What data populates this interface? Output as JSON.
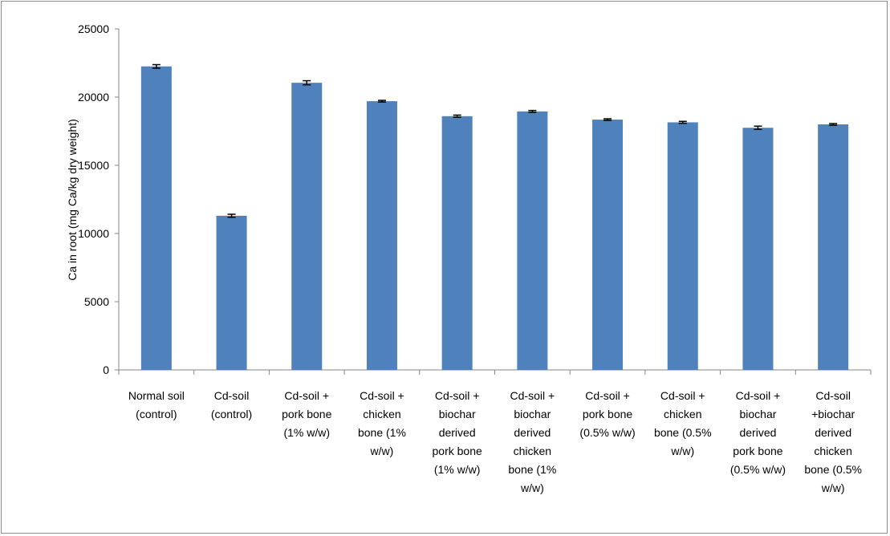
{
  "chart_data": {
    "type": "bar",
    "title": "",
    "xlabel": "",
    "ylabel": "Ca in root (mg Ca/kg dry weight)",
    "ylim": [
      0,
      25000
    ],
    "yticks": [
      0,
      5000,
      10000,
      15000,
      20000,
      25000
    ],
    "grid": false,
    "legend": "none",
    "bar_color": "#4f81bd",
    "categories": [
      [
        "Normal soil",
        "(control)"
      ],
      [
        "Cd-soil",
        "(control)"
      ],
      [
        "Cd-soil +",
        "pork bone",
        "(1% w/w)"
      ],
      [
        "Cd-soil +",
        "chicken",
        "bone (1%",
        "w/w)"
      ],
      [
        "Cd-soil +",
        "biochar",
        "derived",
        "pork bone",
        "(1% w/w)"
      ],
      [
        "Cd-soil +",
        "biochar",
        "derived",
        "chicken",
        "bone (1%",
        "w/w)"
      ],
      [
        "Cd-soil +",
        "pork bone",
        "(0.5% w/w)"
      ],
      [
        "Cd-soil +",
        "chicken",
        "bone (0.5%",
        "w/w)"
      ],
      [
        "Cd-soil +",
        "biochar",
        "derived",
        "pork bone",
        "(0.5% w/w)"
      ],
      [
        "Cd-soil",
        "+biochar",
        "derived",
        "chicken",
        "bone (0.5%",
        "w/w)"
      ]
    ],
    "values": [
      22250,
      11300,
      21050,
      19700,
      18600,
      18950,
      18350,
      18150,
      17750,
      18000
    ],
    "errors": [
      130,
      110,
      150,
      60,
      80,
      70,
      60,
      70,
      120,
      60
    ]
  }
}
